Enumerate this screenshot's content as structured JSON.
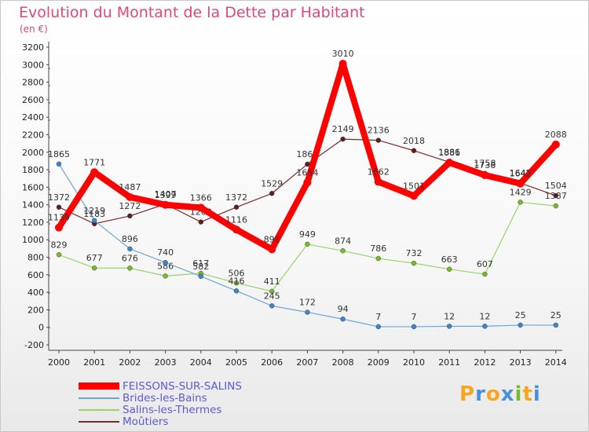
{
  "title": "Evolution du Montant de la Dette par Habitant",
  "subtitle": "(en €)",
  "logo": {
    "letters": [
      "P",
      "r",
      "o",
      "x",
      "i",
      "t",
      "i"
    ],
    "colors": [
      "#f5a623",
      "#4a90d9",
      "#f5a623",
      "#4a90d9",
      "#7ab929",
      "#f5a623",
      "#4a90d9"
    ]
  },
  "chart_data": {
    "type": "line",
    "title": "Evolution du Montant de la Dette par Habitant",
    "subtitle": "(en €)",
    "x": [
      2000,
      2001,
      2002,
      2003,
      2004,
      2005,
      2006,
      2007,
      2008,
      2009,
      2010,
      2011,
      2012,
      2013,
      2014
    ],
    "ylim": [
      -200,
      3200
    ],
    "yticks": [
      -200,
      0,
      200,
      400,
      600,
      800,
      1000,
      1200,
      1400,
      1600,
      1800,
      2000,
      2200,
      2400,
      2600,
      2800,
      3000,
      3200
    ],
    "grid": false,
    "legend": "bottom-left",
    "series": [
      {
        "name": "Moûtiers",
        "color": "#7a2a2a",
        "dot": "#5c1f1f",
        "width": 1.2,
        "values": [
          1372,
          1183,
          1272,
          1407,
          1203,
          1372,
          1529,
          1863,
          2149,
          2136,
          2018,
          1886,
          1758,
          1647,
          1504
        ],
        "labels": [
          "1372",
          "1183",
          "1272",
          "1407",
          "1203",
          "1372",
          "1529",
          "1863",
          "2149",
          "2136",
          "2018",
          "1886",
          "1758",
          "1647",
          "1504"
        ]
      },
      {
        "name": "Salins-les-Thermes",
        "color": "#9ad36b",
        "dot": "#7ab929",
        "width": 1.2,
        "values": [
          829,
          677,
          676,
          586,
          617,
          506,
          411,
          949,
          874,
          786,
          732,
          663,
          607,
          1429,
          1387
        ],
        "labels": [
          "829",
          "677",
          "676",
          "586",
          "617",
          "506",
          "411",
          "949",
          "874",
          "786",
          "732",
          "663",
          "607",
          "1429",
          "1387"
        ]
      },
      {
        "name": "Brides-les-Bains",
        "color": "#6aa5d8",
        "dot": "#3d85c6",
        "width": 1.2,
        "values": [
          1865,
          1219,
          896,
          740,
          582,
          416,
          245,
          172,
          94,
          7,
          7,
          12,
          12,
          25,
          25
        ],
        "labels": [
          "1865",
          "1219",
          "896",
          "740",
          "582",
          "416",
          "245",
          "172",
          "94",
          "7",
          "7",
          "12",
          "12",
          "25",
          "25"
        ]
      },
      {
        "name": "FEISSONS-SUR-SALINS",
        "color": "#ff0000",
        "dot": "#ff0000",
        "width": 8,
        "values": [
          1139,
          1771,
          1487,
          1399,
          1366,
          1116,
          891,
          1654,
          3010,
          1662,
          1501,
          1881,
          1738,
          1642,
          2088
        ],
        "labels": [
          "1139",
          "1771",
          "1487",
          "1399",
          "1366",
          "1116",
          "891",
          "1654",
          "3010",
          "1662",
          "1501",
          "1881",
          "1738",
          "1642",
          "2088"
        ]
      }
    ]
  }
}
